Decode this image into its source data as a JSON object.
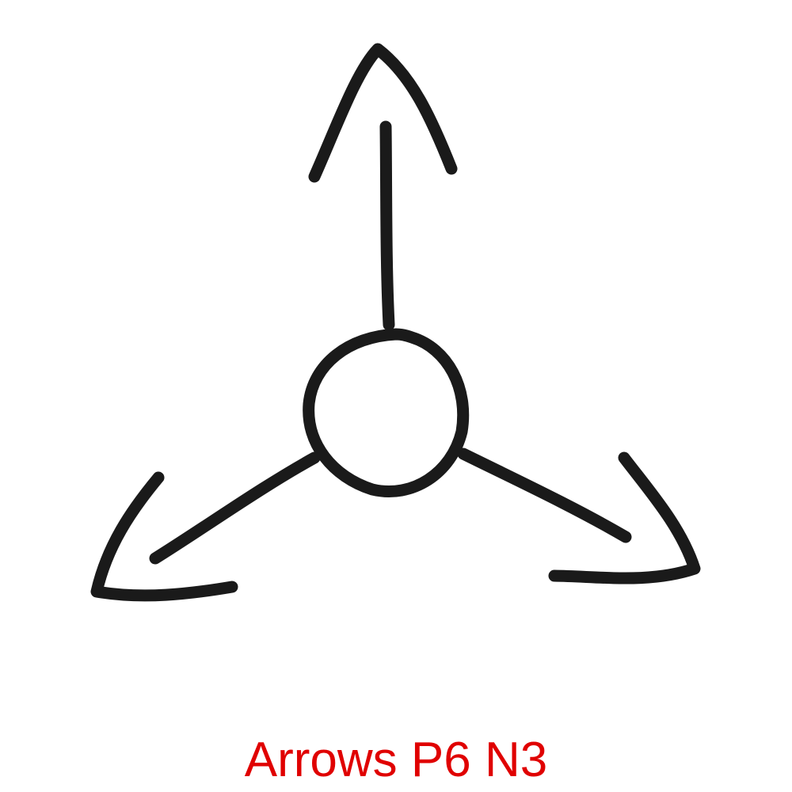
{
  "diagram": {
    "caption": "Arrows P6 N3",
    "caption_color": "#e00000",
    "stroke_color": "#1a1a1a",
    "hub": "circle",
    "arrow_count": 3,
    "arrows": [
      {
        "name": "up",
        "direction": "up"
      },
      {
        "name": "lower-left",
        "direction": "down-left"
      },
      {
        "name": "lower-right",
        "direction": "down-right"
      }
    ]
  }
}
